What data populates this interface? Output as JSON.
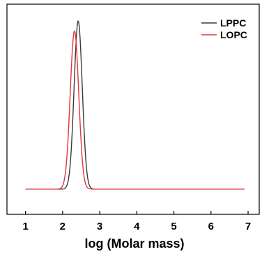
{
  "chart_data": {
    "type": "line",
    "title": "",
    "xlabel": "log (Molar mass)",
    "ylabel": "",
    "xlim": [
      0.5,
      7.3
    ],
    "ylim": [
      -0.15,
      1.1
    ],
    "xticks": [
      1,
      2,
      3,
      4,
      5,
      6,
      7
    ],
    "xtick_labels": [
      "1",
      "2",
      "3",
      "4",
      "5",
      "6",
      "7"
    ],
    "y_tick_labels_shown": false,
    "grid": false,
    "legend_position": "top-right",
    "series": [
      {
        "name": "LPPC",
        "color": "#3a3a3a",
        "peak_x": 2.42,
        "peak_y": 1.0,
        "width_sd": 0.11,
        "baseline": 0.0,
        "x_range": [
          1.0,
          6.9
        ]
      },
      {
        "name": "LOPC",
        "color": "#e8323c",
        "peak_x": 2.32,
        "peak_y": 0.94,
        "width_sd": 0.115,
        "baseline": 0.0,
        "x_range": [
          1.0,
          6.9
        ]
      }
    ]
  }
}
